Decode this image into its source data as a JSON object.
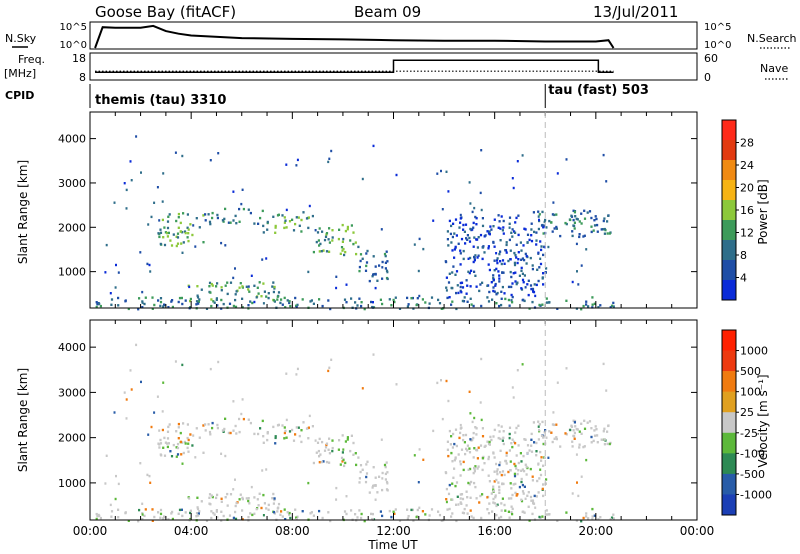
{
  "header": {
    "station": "Goose Bay (fitACF)",
    "beam": "Beam 09",
    "date": "13/Jul/2011"
  },
  "status_panels": {
    "nsky_label": "N.Sky",
    "nsearch_label": "N.Search",
    "freq_label_1": "Freq.",
    "freq_label_2": "[MHz]",
    "nave_label": "Nave",
    "cpid_label": "CPID",
    "nsky_ticks": [
      "10^5",
      "10^0"
    ],
    "nsearch_ticks": [
      "10^5",
      "10^0"
    ],
    "freq_ticks": [
      "18",
      "8"
    ],
    "nave_ticks": [
      "60",
      "0"
    ]
  },
  "cpid_segments": [
    {
      "label": "themis (tau) 3310",
      "start_hour": 0.0
    },
    {
      "label": "tau (fast) 503",
      "start_hour": 18.0
    }
  ],
  "axes": {
    "xlabel": "Time UT",
    "ylabel": "Slant Range [km]",
    "x_ticks": [
      "00:00",
      "04:00",
      "08:00",
      "12:00",
      "16:00",
      "20:00",
      "00:00"
    ],
    "y_ticks": [
      "1000",
      "2000",
      "3000",
      "4000"
    ]
  },
  "colorbars": {
    "power_label": "Power [dB]",
    "velocity_label": "Velocity [m s⁻¹]"
  },
  "chart_data": [
    {
      "type": "line",
      "name": "nsky-nsearch",
      "x_range_hours": [
        0,
        24
      ],
      "ylim": [
        "10^0",
        "10^5"
      ],
      "x": [
        0.2,
        0.5,
        1.0,
        1.5,
        2.0,
        2.5,
        3.0,
        3.5,
        4.0,
        6.0,
        8.0,
        10.0,
        12.0,
        14.0,
        16.0,
        18.0,
        19.0,
        20.0,
        20.5,
        20.7
      ],
      "series": [
        {
          "values": [
            0.0,
            0.8,
            0.78,
            0.78,
            0.78,
            0.85,
            0.65,
            0.55,
            0.48,
            0.38,
            0.35,
            0.33,
            0.3,
            0.28,
            0.28,
            0.25,
            0.25,
            0.25,
            0.3,
            0.0
          ]
        }
      ]
    },
    {
      "type": "line",
      "name": "frequency-nave",
      "x_range_hours": [
        0,
        24
      ],
      "ylim_left": [
        8,
        18
      ],
      "ylim_right": [
        0,
        60
      ],
      "series": [
        {
          "x": [
            0.2,
            12.0,
            12.0,
            20.1,
            20.1,
            20.7
          ],
          "values": [
            10.6,
            10.6,
            15.2,
            15.2,
            10.6,
            10.6
          ]
        },
        {
          "x": [
            0.2,
            20.7
          ],
          "values": [
            11,
            11
          ]
        }
      ]
    },
    {
      "type": "heatmap",
      "name": "power",
      "x_range_hours": [
        0,
        24
      ],
      "ylim": [
        180,
        4600
      ],
      "colorbar_ticks": [
        4,
        8,
        12,
        16,
        20,
        24,
        28
      ],
      "colorbar_colors": [
        "#0a2bd8",
        "#1f4ea6",
        "#2f6e8a",
        "#3d9b5a",
        "#8cc83a",
        "#f6b314",
        "#f08a12",
        "#e23a10",
        "#ff2a1a"
      ],
      "regions": [
        {
          "t0": 2.6,
          "t1": 4.5,
          "r0": 1600,
          "r1": 2350,
          "level": 3
        },
        {
          "t0": 4.5,
          "t1": 6.8,
          "r0": 2100,
          "r1": 2450,
          "level": 2
        },
        {
          "t0": 6.8,
          "t1": 8.8,
          "r0": 1900,
          "r1": 2400,
          "level": 3
        },
        {
          "t0": 8.8,
          "t1": 10.6,
          "r0": 1400,
          "r1": 2100,
          "level": 3
        },
        {
          "t0": 10.6,
          "t1": 11.8,
          "r0": 800,
          "r1": 1500,
          "level": 2
        },
        {
          "t0": 3.8,
          "t1": 7.5,
          "r0": 350,
          "r1": 800,
          "level": 3
        },
        {
          "t0": 0.2,
          "t1": 20.7,
          "r0": 180,
          "r1": 450,
          "level": 2
        },
        {
          "t0": 17.5,
          "t1": 20.6,
          "r0": 1800,
          "r1": 2400,
          "level": 2
        },
        {
          "t0": 14.0,
          "t1": 18.0,
          "r0": 400,
          "r1": 2300,
          "level": 1
        }
      ]
    },
    {
      "type": "heatmap",
      "name": "velocity",
      "x_range_hours": [
        0,
        24
      ],
      "ylim": [
        180,
        4600
      ],
      "colorbar_ticks": [
        1000,
        500,
        100,
        25,
        -25,
        -100,
        -500,
        -1000
      ],
      "colorbar_colors": [
        "#1b3fb5",
        "#285ca8",
        "#2d8a54",
        "#5cb83a",
        "#c8c8c8",
        "#e0a020",
        "#f07b10",
        "#ee3a10",
        "#ff2000"
      ],
      "regions": [
        {
          "t0": 2.6,
          "t1": 4.5,
          "r0": 1600,
          "r1": 2350,
          "class": 4
        },
        {
          "t0": 4.5,
          "t1": 6.8,
          "r0": 2100,
          "r1": 2450,
          "class": 4
        },
        {
          "t0": 6.8,
          "t1": 8.8,
          "r0": 1900,
          "r1": 2400,
          "class": 4
        },
        {
          "t0": 8.8,
          "t1": 10.6,
          "r0": 1400,
          "r1": 2100,
          "class": 4
        },
        {
          "t0": 10.6,
          "t1": 11.8,
          "r0": 800,
          "r1": 1500,
          "class": 4
        },
        {
          "t0": 3.8,
          "t1": 7.5,
          "r0": 350,
          "r1": 800,
          "class": 4
        },
        {
          "t0": 0.2,
          "t1": 20.7,
          "r0": 180,
          "r1": 450,
          "class": 4
        },
        {
          "t0": 17.5,
          "t1": 20.6,
          "r0": 1800,
          "r1": 2400,
          "class": 4
        },
        {
          "t0": 14.0,
          "t1": 18.0,
          "r0": 400,
          "r1": 2300,
          "class": 4
        }
      ]
    }
  ]
}
